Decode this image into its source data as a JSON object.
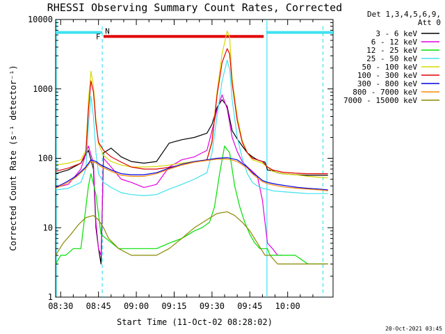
{
  "chart_data": {
    "type": "line",
    "title": "RHESSI Observing Summary Count Rates, Corrected",
    "xlabel": "Start Time (11-Oct-02 08:28:02)",
    "ylabel": "Corrected Count Rate (s⁻¹ detector⁻¹)",
    "x_unit": "minutes after 08:28:02",
    "xlim": [
      0,
      110
    ],
    "ylim": [
      1,
      10000
    ],
    "yscale": "log",
    "x_ticks": [
      {
        "x": 2,
        "label": "08:30"
      },
      {
        "x": 17,
        "label": "08:45"
      },
      {
        "x": 32,
        "label": "09:00"
      },
      {
        "x": 47,
        "label": "09:15"
      },
      {
        "x": 62,
        "label": "09:30"
      },
      {
        "x": 77,
        "label": "09:45"
      },
      {
        "x": 92,
        "label": "10:00"
      }
    ],
    "y_ticks": [
      {
        "y": 1,
        "label": "1"
      },
      {
        "y": 10,
        "label": "10"
      },
      {
        "y": 100,
        "label": "100"
      },
      {
        "y": 1000,
        "label": "1000"
      },
      {
        "y": 10000,
        "label": "10000"
      }
    ],
    "legend_header": [
      "Det 1,3,4,5,6,9,",
      "Att 0"
    ],
    "legend_position": "right",
    "markers": {
      "night_bars": [
        {
          "x0": 0,
          "x1": 18.5,
          "y": 6500
        },
        {
          "x0": 83.5,
          "x1": 110,
          "y": 6500
        }
      ],
      "night_label": "N",
      "night_color": "#40e0f0",
      "flare_bar": {
        "x0": 19,
        "x1": 82.5,
        "y": 5700
      },
      "flare_label": "F",
      "flare_color": "#e00000",
      "dashed_x": [
        18.5,
        106
      ],
      "solid_x": [
        0,
        83.5
      ]
    },
    "series": [
      {
        "name": "3 - 6 keV",
        "color": "#000000",
        "x": [
          0,
          5,
          10,
          13,
          15,
          16,
          17,
          18,
          19,
          22,
          26,
          30,
          35,
          40,
          45,
          50,
          55,
          60,
          62,
          64,
          66,
          68,
          70,
          72,
          74,
          76,
          78,
          80,
          82,
          83,
          84,
          86,
          88,
          90,
          95,
          100,
          105,
          108
        ],
        "y": [
          60,
          68,
          85,
          130,
          70,
          10,
          5,
          3,
          120,
          140,
          105,
          90,
          85,
          90,
          165,
          185,
          200,
          230,
          310,
          540,
          700,
          560,
          250,
          190,
          150,
          120,
          105,
          95,
          90,
          88,
          68,
          66,
          62,
          60,
          58,
          57,
          57,
          57
        ]
      },
      {
        "name": "6 - 12 keV",
        "color": "#e000e0",
        "x": [
          0,
          5,
          10,
          13,
          15,
          16,
          17,
          18,
          19,
          22,
          26,
          30,
          35,
          40,
          45,
          50,
          55,
          60,
          62,
          64,
          66,
          68,
          70,
          72,
          74,
          76,
          78,
          80,
          82,
          83,
          84,
          86,
          88,
          90
        ],
        "y": [
          38,
          42,
          70,
          150,
          85,
          12,
          5,
          4,
          100,
          75,
          50,
          45,
          38,
          42,
          75,
          95,
          105,
          130,
          250,
          500,
          820,
          520,
          200,
          125,
          90,
          75,
          65,
          55,
          25,
          12,
          6,
          5,
          4,
          4
        ]
      },
      {
        "name": "12 - 25 keV",
        "color": "#00e000",
        "x": [
          0,
          2,
          4,
          7,
          10,
          13,
          14,
          16,
          18,
          20,
          25,
          30,
          35,
          40,
          45,
          50,
          55,
          58,
          61,
          63,
          65,
          67,
          69,
          71,
          73,
          75,
          77,
          79,
          81,
          83,
          84,
          85,
          87,
          90,
          95,
          100,
          105,
          108
        ],
        "y": [
          3,
          4,
          4,
          5,
          5,
          40,
          60,
          30,
          8,
          7,
          5,
          5,
          5,
          5,
          6,
          7,
          9,
          10,
          12,
          20,
          60,
          150,
          120,
          40,
          20,
          12,
          8,
          6,
          5,
          5,
          5,
          4,
          4,
          4,
          4,
          3,
          3,
          3
        ]
      },
      {
        "name": "25 - 50 keV",
        "color": "#40e0f0",
        "x": [
          0,
          5,
          10,
          12,
          13,
          14,
          15,
          16,
          17,
          19,
          22,
          26,
          30,
          35,
          40,
          45,
          50,
          55,
          60,
          62,
          64,
          66,
          68,
          69,
          70,
          72,
          74,
          76,
          78,
          80,
          82,
          84,
          86,
          90,
          95,
          100,
          105,
          108
        ],
        "y": [
          35,
          37,
          45,
          70,
          300,
          780,
          400,
          120,
          60,
          45,
          38,
          32,
          30,
          29,
          30,
          36,
          42,
          50,
          62,
          120,
          400,
          1300,
          2600,
          1900,
          700,
          200,
          100,
          60,
          45,
          40,
          37,
          36,
          34,
          33,
          32,
          31,
          31,
          31
        ]
      },
      {
        "name": "50 - 100 keV",
        "color": "#d8d800",
        "x": [
          0,
          5,
          10,
          12,
          13,
          14,
          15,
          16,
          17,
          19,
          22,
          26,
          30,
          35,
          40,
          45,
          50,
          55,
          60,
          62,
          64,
          66,
          68,
          69,
          70,
          72,
          74,
          76,
          78,
          80,
          82,
          84,
          86,
          90,
          95,
          100,
          105,
          108
        ],
        "y": [
          80,
          85,
          95,
          130,
          700,
          1800,
          1100,
          350,
          160,
          110,
          90,
          80,
          75,
          75,
          76,
          80,
          85,
          90,
          95,
          180,
          900,
          3200,
          6800,
          5500,
          1400,
          400,
          180,
          120,
          95,
          90,
          85,
          75,
          65,
          60,
          58,
          55,
          53,
          52
        ]
      },
      {
        "name": "100 - 300 keV",
        "color": "#e00000",
        "x": [
          0,
          5,
          10,
          12,
          13,
          14,
          15,
          16,
          17,
          19,
          22,
          26,
          30,
          35,
          40,
          45,
          50,
          55,
          60,
          62,
          64,
          66,
          68,
          69,
          70,
          72,
          74,
          76,
          78,
          80,
          82,
          84,
          86,
          90,
          95,
          100,
          105,
          108
        ],
        "y": [
          65,
          72,
          85,
          120,
          500,
          1300,
          900,
          320,
          170,
          130,
          105,
          88,
          75,
          70,
          70,
          74,
          80,
          88,
          95,
          170,
          800,
          2400,
          3800,
          3200,
          1200,
          350,
          170,
          120,
          100,
          95,
          90,
          75,
          68,
          63,
          61,
          60,
          60,
          60
        ]
      },
      {
        "name": "300 - 800 keV",
        "color": "#0000e0",
        "x": [
          0,
          4,
          8,
          12,
          14,
          16,
          18,
          22,
          26,
          30,
          35,
          40,
          45,
          50,
          55,
          60,
          64,
          68,
          72,
          76,
          78,
          80,
          82,
          84,
          88,
          92,
          96,
          100,
          105,
          108
        ],
        "y": [
          38,
          45,
          55,
          75,
          95,
          90,
          80,
          68,
          60,
          58,
          58,
          62,
          72,
          82,
          90,
          95,
          100,
          102,
          95,
          75,
          62,
          55,
          48,
          45,
          42,
          40,
          38,
          37,
          36,
          35
        ]
      },
      {
        "name": "800 - 7000 keV",
        "color": "#ff8800",
        "x": [
          0,
          4,
          8,
          12,
          14,
          16,
          18,
          22,
          26,
          30,
          35,
          40,
          45,
          50,
          55,
          60,
          64,
          68,
          72,
          76,
          78,
          80,
          82,
          84,
          88,
          92,
          96,
          100,
          105,
          108
        ],
        "y": [
          37,
          43,
          53,
          72,
          90,
          86,
          76,
          65,
          57,
          55,
          55,
          60,
          70,
          80,
          88,
          93,
          97,
          98,
          90,
          72,
          60,
          52,
          46,
          43,
          40,
          38,
          37,
          36,
          35,
          34
        ]
      },
      {
        "name": "7000 - 15000 keV",
        "color": "#888800",
        "x": [
          0,
          3,
          6,
          9,
          12,
          15,
          17,
          19,
          21,
          25,
          30,
          35,
          40,
          45,
          50,
          55,
          60,
          64,
          68,
          71,
          74,
          77,
          80,
          83,
          85,
          88,
          92,
          96,
          100,
          105,
          108
        ],
        "y": [
          4,
          6,
          8,
          11,
          14,
          15,
          13,
          10,
          7,
          5,
          4,
          4,
          4,
          5,
          7,
          10,
          13,
          16,
          17,
          15,
          12,
          9,
          6,
          4,
          4,
          3,
          3,
          3,
          3,
          3,
          3
        ]
      }
    ]
  },
  "footer": {
    "timestamp": "20-Oct-2021 03:45"
  }
}
